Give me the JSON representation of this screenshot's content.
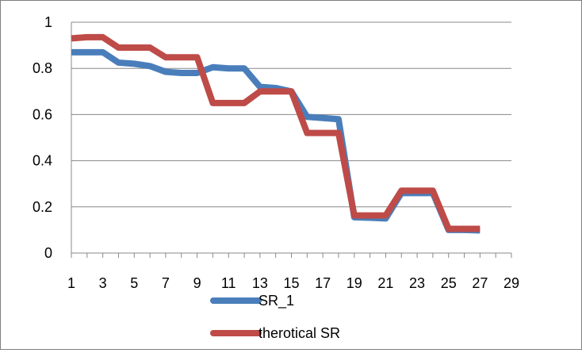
{
  "chart_data": {
    "type": "line",
    "x": [
      1,
      2,
      3,
      4,
      5,
      6,
      7,
      8,
      9,
      10,
      11,
      12,
      13,
      14,
      15,
      16,
      17,
      18,
      19,
      20,
      21,
      22,
      23,
      24,
      25,
      26,
      27
    ],
    "x_tick_labels": [
      "1",
      "3",
      "5",
      "7",
      "9",
      "11",
      "13",
      "15",
      "17",
      "19",
      "21",
      "23",
      "25",
      "27",
      "29"
    ],
    "y_tick_labels": [
      "0",
      "0.2",
      "0.4",
      "0.6",
      "0.8",
      "1"
    ],
    "xlim": [
      1,
      29
    ],
    "ylim": [
      0,
      1
    ],
    "grid": true,
    "legend_position": "bottom",
    "series": [
      {
        "name": "SR_1",
        "color": "#4a7ebb",
        "values": [
          0.87,
          0.87,
          0.87,
          0.825,
          0.82,
          0.81,
          0.785,
          0.78,
          0.78,
          0.805,
          0.8,
          0.8,
          0.72,
          0.715,
          0.7,
          0.59,
          0.585,
          0.58,
          0.155,
          0.153,
          0.15,
          0.26,
          0.26,
          0.26,
          0.1,
          0.1,
          0.098
        ]
      },
      {
        "name": "therotical SR",
        "color": "#be4b48",
        "values": [
          0.93,
          0.935,
          0.935,
          0.89,
          0.89,
          0.89,
          0.848,
          0.848,
          0.848,
          0.65,
          0.65,
          0.65,
          0.7,
          0.7,
          0.7,
          0.52,
          0.52,
          0.52,
          0.163,
          0.163,
          0.163,
          0.27,
          0.27,
          0.27,
          0.105,
          0.105,
          0.105
        ]
      }
    ]
  }
}
